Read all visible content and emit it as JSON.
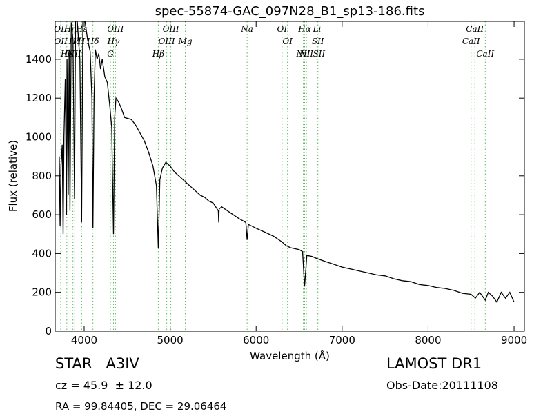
{
  "chart_data": {
    "type": "line",
    "title": "spec-55874-GAC_097N28_B1_sp13-186.fits",
    "xlabel": "Wavelength (Å)",
    "ylabel": "Flux (relative)",
    "color": "#000000",
    "x": [
      3710,
      3720,
      3730,
      3745,
      3755,
      3765,
      3780,
      3795,
      3800,
      3815,
      3825,
      3835,
      3850,
      3870,
      3888,
      3900,
      3920,
      3950,
      3970,
      3985,
      4010,
      4040,
      4070,
      4090,
      4102,
      4115,
      4130,
      4150,
      4170,
      4190,
      4210,
      4240,
      4270,
      4300,
      4320,
      4341,
      4355,
      4370,
      4400,
      4430,
      4470,
      4550,
      4600,
      4650,
      4700,
      4750,
      4800,
      4840,
      4862,
      4880,
      4910,
      4950,
      5000,
      5050,
      5100,
      5150,
      5200,
      5250,
      5300,
      5350,
      5400,
      5450,
      5500,
      5560,
      5565,
      5570,
      5600,
      5700,
      5800,
      5880,
      5895,
      5910,
      6000,
      6100,
      6200,
      6300,
      6350,
      6400,
      6500,
      6540,
      6563,
      6590,
      6650,
      6700,
      6800,
      6900,
      7000,
      7100,
      7200,
      7300,
      7400,
      7500,
      7600,
      7700,
      7800,
      7900,
      8000,
      8100,
      8200,
      8300,
      8400,
      8500,
      8550,
      8600,
      8665,
      8700,
      8750,
      8800,
      8850,
      8900,
      8950,
      9000
    ],
    "values": [
      900,
      540,
      850,
      960,
      500,
      1000,
      1300,
      600,
      1400,
      700,
      1450,
      620,
      1590,
      1500,
      680,
      1595,
      1595,
      1400,
      560,
      1595,
      1595,
      1500,
      1440,
      1200,
      530,
      1200,
      1450,
      1400,
      1430,
      1350,
      1400,
      1310,
      1280,
      1150,
      1050,
      500,
      1100,
      1200,
      1180,
      1150,
      1100,
      1090,
      1060,
      1020,
      980,
      920,
      850,
      750,
      430,
      780,
      840,
      870,
      850,
      820,
      800,
      780,
      760,
      740,
      720,
      700,
      690,
      670,
      660,
      620,
      560,
      630,
      640,
      610,
      580,
      560,
      470,
      550,
      530,
      510,
      490,
      460,
      440,
      430,
      420,
      410,
      230,
      390,
      385,
      375,
      360,
      345,
      330,
      320,
      310,
      300,
      290,
      285,
      270,
      260,
      255,
      240,
      235,
      225,
      220,
      210,
      195,
      190,
      170,
      200,
      160,
      200,
      180,
      150,
      200,
      170,
      200,
      150
    ],
    "xlim": [
      3663,
      9120
    ],
    "ylim": [
      0,
      1595
    ],
    "xticks": [
      4000,
      5000,
      6000,
      7000,
      8000,
      9000
    ],
    "yticks": [
      0,
      200,
      400,
      600,
      800,
      1000,
      1200,
      1400
    ],
    "line_marker_color": "#5cb85c",
    "spectral_lines": [
      {
        "label": "OII",
        "x": 3727
      },
      {
        "label": "OII",
        "x": 3729
      },
      {
        "label": "Hθ",
        "x": 3798
      },
      {
        "label": "Hη",
        "x": 3836
      },
      {
        "label": "Hζ",
        "x": 3890
      },
      {
        "label": "OIII",
        "x": 3869
      },
      {
        "label": "Hε",
        "x": 3971
      },
      {
        "label": "H",
        "x": 3969
      },
      {
        "label": "Hδ",
        "x": 4102
      },
      {
        "label": "OIII",
        "x": 4364
      },
      {
        "label": "Hγ",
        "x": 4341
      },
      {
        "label": "G",
        "x": 4305
      },
      {
        "label": "OIII",
        "x": 5008
      },
      {
        "label": "OIII",
        "x": 4960
      },
      {
        "label": "Hβ",
        "x": 4862
      },
      {
        "label": "Mg",
        "x": 5176
      },
      {
        "label": "Na",
        "x": 5895
      },
      {
        "label": "OI",
        "x": 6302
      },
      {
        "label": "OI",
        "x": 6365
      },
      {
        "label": "Hα",
        "x": 6564
      },
      {
        "label": "SII",
        "x": 6718
      },
      {
        "label": "NII",
        "x": 6549
      },
      {
        "label": "Li",
        "x": 6708
      },
      {
        "label": "NII",
        "x": 6585
      },
      {
        "label": "SII",
        "x": 6732
      },
      {
        "label": "CaII",
        "x": 8544
      },
      {
        "label": "CaII",
        "x": 8500
      },
      {
        "label": "CaII",
        "x": 8665
      }
    ],
    "object_class": "STAR   A3IV",
    "redshift": "cz = 45.9  ± 12.0",
    "coordinates": "RA = 99.84405, DEC = 29.06464",
    "survey": "LAMOST DR1",
    "obs_date": "Obs-Date:20111108"
  }
}
